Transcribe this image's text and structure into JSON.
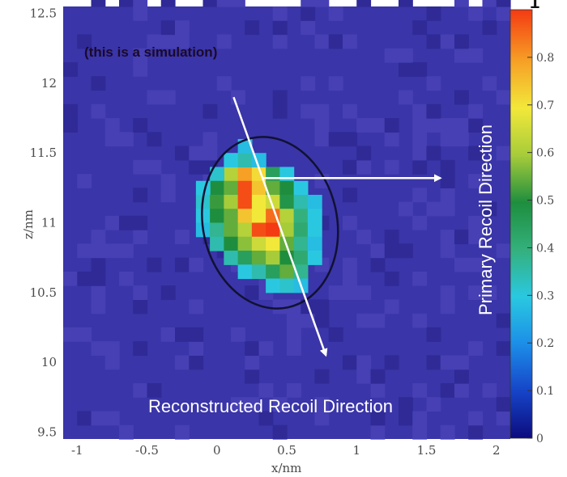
{
  "chart_data": {
    "type": "heatmap",
    "title": "",
    "xlabel": "x/nm",
    "ylabel": "z/nm",
    "xlim": [
      -1.1,
      2.1
    ],
    "ylim": [
      9.45,
      12.55
    ],
    "x_ticks": [
      -1,
      -0.5,
      0,
      0.5,
      1,
      1.5,
      2
    ],
    "x_tick_labels": [
      "-1",
      "-0.5",
      "0",
      "0.5",
      "1",
      "1.5",
      "2"
    ],
    "y_ticks": [
      9.5,
      10,
      10.5,
      11,
      11.5,
      12,
      12.5
    ],
    "y_tick_labels": [
      "9.5",
      "10",
      "10.5",
      "11",
      "11.5",
      "12",
      "12.5"
    ],
    "colorbar": {
      "min": 0,
      "max": 0.9,
      "ticks": [
        0,
        0.1,
        0.2,
        0.3,
        0.4,
        0.5,
        0.6,
        0.7,
        0.8
      ],
      "tick_labels": [
        "0",
        "0.1",
        "0.2",
        "0.3",
        "0.4",
        "0.5",
        "0.6",
        "0.7",
        "0.8"
      ],
      "top_marker": "1",
      "colors": [
        "#0c0c7e",
        "#1644c8",
        "#1c8ee8",
        "#2ac8e0",
        "#34b07c",
        "#1e8e3e",
        "#a6cc3a",
        "#f2e83a",
        "#f6a026",
        "#f43a12"
      ]
    },
    "background_value": 0.05,
    "cells": [
      {
        "x": 0.1,
        "z": 11.35,
        "value": 0.62
      },
      {
        "x": 0.2,
        "z": 11.35,
        "value": 0.8
      },
      {
        "x": 0.3,
        "z": 11.35,
        "value": 0.72
      },
      {
        "x": 0.4,
        "z": 11.35,
        "value": 0.45
      },
      {
        "x": 0.5,
        "z": 11.35,
        "value": 0.3
      },
      {
        "x": 0.0,
        "z": 11.35,
        "value": 0.32
      },
      {
        "x": 0.1,
        "z": 11.45,
        "value": 0.3
      },
      {
        "x": 0.2,
        "z": 11.45,
        "value": 0.35
      },
      {
        "x": 0.3,
        "z": 11.45,
        "value": 0.28
      },
      {
        "x": 0.2,
        "z": 11.55,
        "value": 0.28
      },
      {
        "x": 0.0,
        "z": 11.25,
        "value": 0.5
      },
      {
        "x": 0.1,
        "z": 11.25,
        "value": 0.55
      },
      {
        "x": 0.2,
        "z": 11.25,
        "value": 0.88
      },
      {
        "x": 0.3,
        "z": 11.25,
        "value": 0.75
      },
      {
        "x": 0.4,
        "z": 11.25,
        "value": 0.55
      },
      {
        "x": 0.5,
        "z": 11.25,
        "value": 0.5
      },
      {
        "x": 0.6,
        "z": 11.25,
        "value": 0.3
      },
      {
        "x": -0.1,
        "z": 11.25,
        "value": 0.3
      },
      {
        "x": -0.1,
        "z": 11.15,
        "value": 0.32
      },
      {
        "x": 0.0,
        "z": 11.15,
        "value": 0.52
      },
      {
        "x": 0.1,
        "z": 11.15,
        "value": 0.6
      },
      {
        "x": 0.2,
        "z": 11.15,
        "value": 0.88
      },
      {
        "x": 0.3,
        "z": 11.15,
        "value": 0.7
      },
      {
        "x": 0.4,
        "z": 11.15,
        "value": 0.65
      },
      {
        "x": 0.5,
        "z": 11.15,
        "value": 0.48
      },
      {
        "x": 0.6,
        "z": 11.15,
        "value": 0.35
      },
      {
        "x": 0.7,
        "z": 11.15,
        "value": 0.28
      },
      {
        "x": -0.1,
        "z": 11.05,
        "value": 0.3
      },
      {
        "x": 0.0,
        "z": 11.05,
        "value": 0.5
      },
      {
        "x": 0.1,
        "z": 11.05,
        "value": 0.55
      },
      {
        "x": 0.2,
        "z": 11.05,
        "value": 0.75
      },
      {
        "x": 0.3,
        "z": 11.05,
        "value": 0.7
      },
      {
        "x": 0.4,
        "z": 11.05,
        "value": 0.85
      },
      {
        "x": 0.5,
        "z": 11.05,
        "value": 0.62
      },
      {
        "x": 0.6,
        "z": 11.05,
        "value": 0.4
      },
      {
        "x": 0.7,
        "z": 11.05,
        "value": 0.3
      },
      {
        "x": -0.1,
        "z": 10.95,
        "value": 0.28
      },
      {
        "x": 0.0,
        "z": 10.95,
        "value": 0.38
      },
      {
        "x": 0.1,
        "z": 10.95,
        "value": 0.55
      },
      {
        "x": 0.2,
        "z": 10.95,
        "value": 0.62
      },
      {
        "x": 0.3,
        "z": 10.95,
        "value": 0.88
      },
      {
        "x": 0.4,
        "z": 10.95,
        "value": 0.9
      },
      {
        "x": 0.5,
        "z": 10.95,
        "value": 0.6
      },
      {
        "x": 0.6,
        "z": 10.95,
        "value": 0.42
      },
      {
        "x": 0.7,
        "z": 10.95,
        "value": 0.3
      },
      {
        "x": 0.0,
        "z": 10.85,
        "value": 0.35
      },
      {
        "x": 0.1,
        "z": 10.85,
        "value": 0.5
      },
      {
        "x": 0.2,
        "z": 10.85,
        "value": 0.58
      },
      {
        "x": 0.3,
        "z": 10.85,
        "value": 0.65
      },
      {
        "x": 0.4,
        "z": 10.85,
        "value": 0.7
      },
      {
        "x": 0.5,
        "z": 10.85,
        "value": 0.55
      },
      {
        "x": 0.6,
        "z": 10.85,
        "value": 0.38
      },
      {
        "x": 0.7,
        "z": 10.85,
        "value": 0.28
      },
      {
        "x": 0.1,
        "z": 10.75,
        "value": 0.35
      },
      {
        "x": 0.2,
        "z": 10.75,
        "value": 0.45
      },
      {
        "x": 0.3,
        "z": 10.75,
        "value": 0.55
      },
      {
        "x": 0.4,
        "z": 10.75,
        "value": 0.6
      },
      {
        "x": 0.5,
        "z": 10.75,
        "value": 0.5
      },
      {
        "x": 0.6,
        "z": 10.75,
        "value": 0.42
      },
      {
        "x": 0.7,
        "z": 10.75,
        "value": 0.3
      },
      {
        "x": 0.2,
        "z": 10.65,
        "value": 0.3
      },
      {
        "x": 0.3,
        "z": 10.65,
        "value": 0.35
      },
      {
        "x": 0.4,
        "z": 10.65,
        "value": 0.45
      },
      {
        "x": 0.5,
        "z": 10.65,
        "value": 0.55
      },
      {
        "x": 0.6,
        "z": 10.65,
        "value": 0.38
      },
      {
        "x": 0.4,
        "z": 10.55,
        "value": 0.3
      },
      {
        "x": 0.5,
        "z": 10.55,
        "value": 0.32
      },
      {
        "x": 0.6,
        "z": 10.55,
        "value": 0.28
      }
    ],
    "fit_ellipse": {
      "center_x": 0.38,
      "center_z": 11.0,
      "semi_axis_x": 0.48,
      "semi_axis_z": 0.62,
      "rotation_deg": -12
    },
    "arrows": [
      {
        "name": "reconstructed",
        "from": [
          0.12,
          11.9
        ],
        "to": [
          0.78,
          10.05
        ]
      },
      {
        "name": "primary",
        "from": [
          0.32,
          11.32
        ],
        "to": [
          1.6,
          11.32
        ]
      }
    ],
    "annotations": {
      "note": "(this is a simulation)",
      "primary": "Primary Recoil Direction",
      "reconstructed": "Reconstructed Recoil Direction"
    }
  }
}
